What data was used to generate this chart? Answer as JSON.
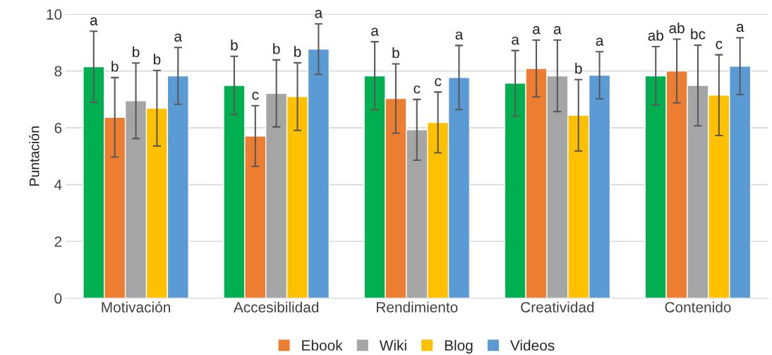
{
  "chart_data": {
    "type": "bar",
    "ylabel": "Puntación",
    "categories": [
      "Motivación",
      "Accesibilidad",
      "Rendimiento",
      "Creatividad",
      "Contenido"
    ],
    "series": [
      {
        "color": "#00b050",
        "values": [
          8.15,
          7.49,
          7.83,
          7.57,
          7.83
        ],
        "errors": [
          1.25,
          1.03,
          1.2,
          1.15,
          1.03
        ]
      },
      {
        "name": "Ebook",
        "color": "#ed7d31",
        "values": [
          6.37,
          5.71,
          7.03,
          8.09,
          8.0
        ],
        "errors": [
          1.4,
          1.07,
          1.22,
          1.0,
          1.12
        ]
      },
      {
        "name": "Wiki",
        "color": "#a5a5a5",
        "values": [
          6.95,
          7.21,
          5.93,
          7.83,
          7.49
        ],
        "errors": [
          1.33,
          1.18,
          1.07,
          1.26,
          1.42
        ]
      },
      {
        "name": "Blog",
        "color": "#ffc000",
        "values": [
          6.69,
          7.1,
          6.19,
          6.44,
          7.15
        ],
        "errors": [
          1.33,
          1.19,
          1.07,
          1.26,
          1.42
        ]
      },
      {
        "name": "Videos",
        "color": "#5b9bd5",
        "values": [
          7.83,
          8.77,
          7.77,
          7.85,
          8.17
        ],
        "errors": [
          1.0,
          0.89,
          1.13,
          0.83,
          1.0
        ]
      }
    ],
    "annotations": [
      "a",
      "b",
      "b",
      "b",
      "a",
      "b",
      "c",
      "b",
      "b",
      "a",
      "a",
      "b",
      "c",
      "c",
      "a",
      "a",
      "a",
      "a",
      "b",
      "a",
      "ab",
      "ab",
      "bc",
      "c",
      "a"
    ],
    "ylim": [
      0,
      10
    ],
    "yticks": [
      0,
      2,
      4,
      6,
      8,
      10
    ],
    "grid": "y",
    "legend": "bottom"
  }
}
